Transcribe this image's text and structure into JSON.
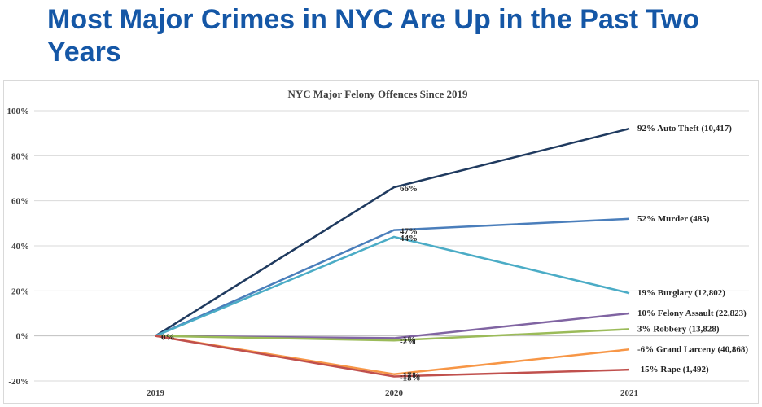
{
  "headline": "Most Major Crimes in NYC Are Up in the Past Two Years",
  "chart_data": {
    "type": "line",
    "title": "NYC Major Felony Offences Since 2019",
    "xlabel": "",
    "ylabel": "",
    "x": [
      "2019",
      "2020",
      "2021"
    ],
    "ylim": [
      -20,
      100
    ],
    "yticks": [
      "100%",
      "80%",
      "60%",
      "40%",
      "20%",
      "0%",
      "-20%"
    ],
    "yticks_values": [
      100,
      80,
      60,
      40,
      20,
      0,
      -20
    ],
    "grid": true,
    "legend": "none",
    "series": [
      {
        "name": "Auto Theft",
        "values": [
          0,
          66,
          92
        ],
        "color": "#1f3a5f",
        "end_label": "92% Auto Theft (10,417)",
        "point_labels": [
          "",
          "66%",
          ""
        ]
      },
      {
        "name": "Murder",
        "values": [
          0,
          47,
          52
        ],
        "color": "#4a7ebb",
        "end_label": "52% Murder (485)",
        "point_labels": [
          "",
          "47%",
          ""
        ]
      },
      {
        "name": "Burglary",
        "values": [
          0,
          44,
          19
        ],
        "color": "#4bacc6",
        "end_label": "19% Burglary (12,802)",
        "point_labels": [
          "",
          "44%",
          ""
        ]
      },
      {
        "name": "Felony Assault",
        "values": [
          0,
          -1,
          10
        ],
        "color": "#8064a2",
        "end_label": "10% Felony Assault (22,823)",
        "point_labels": [
          "0%",
          "-1%",
          ""
        ]
      },
      {
        "name": "Robbery",
        "values": [
          0,
          -2,
          3
        ],
        "color": "#9bbb59",
        "end_label": "3% Robbery (13,828)",
        "point_labels": [
          "",
          "-2%",
          ""
        ]
      },
      {
        "name": "Grand Larceny",
        "values": [
          0,
          -17,
          -6
        ],
        "color": "#f79646",
        "end_label": "-6% Grand Larceny (40,868)",
        "point_labels": [
          "",
          "-17%",
          ""
        ]
      },
      {
        "name": "Rape",
        "values": [
          0,
          -18,
          -15
        ],
        "color": "#c0504d",
        "end_label": "-15% Rape (1,492)",
        "point_labels": [
          "",
          "-18%",
          ""
        ]
      }
    ]
  }
}
